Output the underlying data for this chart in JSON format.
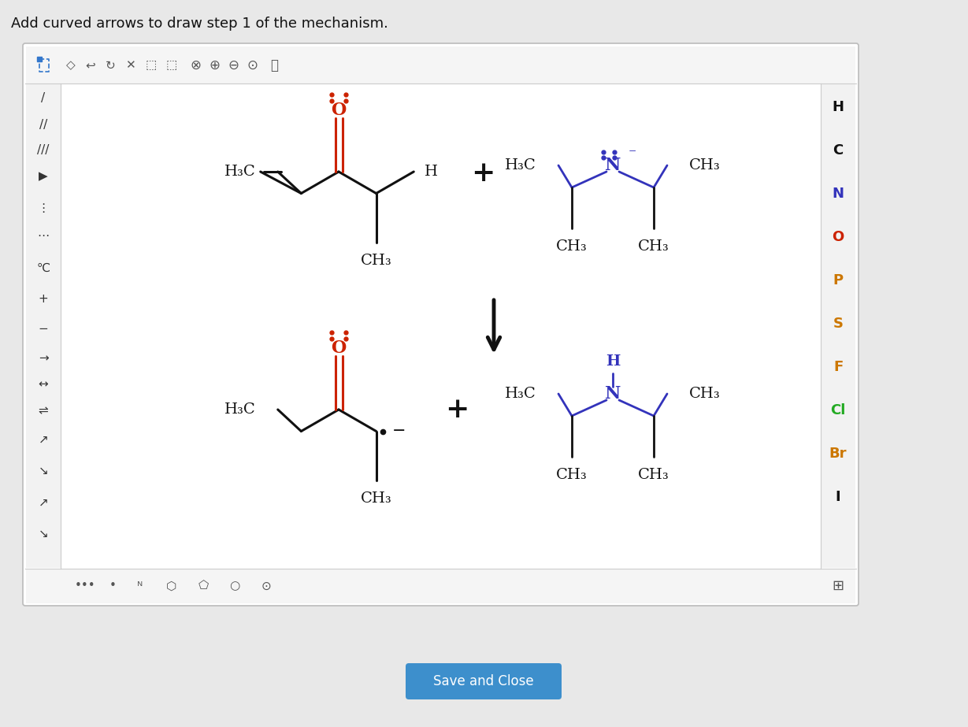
{
  "title": "Add curved arrows to draw step 1 of the mechanism.",
  "title_fontsize": 13,
  "background_color": "#ffffff",
  "outer_bg": "#e8e8e8",
  "panel_border": "#aaaaaa",
  "save_button_color": "#3d8fcc",
  "save_button_text": "Save and Close",
  "right_panel_elements": [
    "H",
    "C",
    "N",
    "O",
    "P",
    "S",
    "F",
    "Cl",
    "Br",
    "I"
  ],
  "right_panel_colors": [
    "#111111",
    "#111111",
    "#3333bb",
    "#cc2200",
    "#cc7700",
    "#cc7700",
    "#cc7700",
    "#22aa22",
    "#cc7700",
    "#111111"
  ],
  "ketone_color": "#cc2200",
  "N_color": "#3333bb",
  "black": "#111111"
}
